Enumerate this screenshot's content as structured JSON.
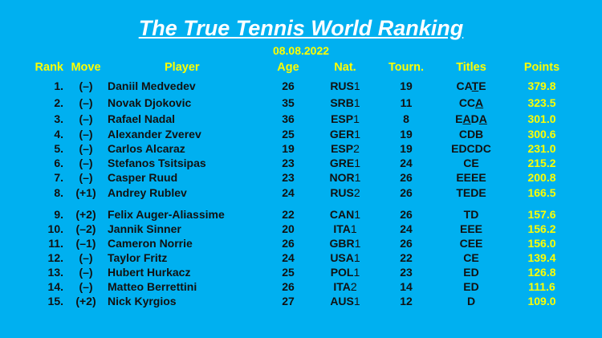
{
  "title": "The True Tennis World Ranking",
  "date": "08.08.2022",
  "headers": {
    "rank": "Rank",
    "move": "Move",
    "player": "Player",
    "age": "Age",
    "nat": "Nat.",
    "tourn": "Tourn.",
    "titles": "Titles",
    "points": "Points"
  },
  "rows": [
    {
      "rank": "1.",
      "move": "(–)",
      "player": "Daniil Medvedev",
      "age": "26",
      "nat": "RUS",
      "nat_n": "1",
      "tourn": "19",
      "titles": [
        {
          "t": "CA",
          "u": false
        },
        {
          "t": "T",
          "u": true
        },
        {
          "t": "E",
          "u": false
        }
      ],
      "points": "379.8"
    },
    {
      "rank": "2.",
      "move": "(–)",
      "player": "Novak Djokovic",
      "age": "35",
      "nat": "SRB",
      "nat_n": "1",
      "tourn": "11",
      "titles": [
        {
          "t": "CC",
          "u": false
        },
        {
          "t": "A",
          "u": true
        }
      ],
      "points": "323.5"
    },
    {
      "rank": "3.",
      "move": "(–)",
      "player": "Rafael Nadal",
      "age": "36",
      "nat": "ESP",
      "nat_n": "1",
      "tourn": "8",
      "titles": [
        {
          "t": "E",
          "u": false
        },
        {
          "t": "A",
          "u": true
        },
        {
          "t": "D",
          "u": false
        },
        {
          "t": "A",
          "u": true
        }
      ],
      "points": "301.0"
    },
    {
      "rank": "4.",
      "move": "(–)",
      "player": "Alexander Zverev",
      "age": "25",
      "nat": "GER",
      "nat_n": "1",
      "tourn": "19",
      "titles": [
        {
          "t": "CDB",
          "u": false
        }
      ],
      "points": "300.6"
    },
    {
      "rank": "5.",
      "move": "(–)",
      "player": "Carlos Alcaraz",
      "age": "19",
      "nat": "ESP",
      "nat_n": "2",
      "tourn": "19",
      "titles": [
        {
          "t": "EDCDC",
          "u": false
        }
      ],
      "points": "231.0"
    },
    {
      "rank": "6.",
      "move": "(–)",
      "player": "Stefanos Tsitsipas",
      "age": "23",
      "nat": "GRE",
      "nat_n": "1",
      "tourn": "24",
      "titles": [
        {
          "t": "CE",
          "u": false
        }
      ],
      "points": "215.2"
    },
    {
      "rank": "7.",
      "move": "(–)",
      "player": "Casper Ruud",
      "age": "23",
      "nat": "NOR",
      "nat_n": "1",
      "tourn": "26",
      "titles": [
        {
          "t": "EEEE",
          "u": false
        }
      ],
      "points": "200.8"
    },
    {
      "rank": "8.",
      "move": "(+1)",
      "player": "Andrey Rublev",
      "age": "24",
      "nat": "RUS",
      "nat_n": "2",
      "tourn": "26",
      "titles": [
        {
          "t": "TEDE",
          "u": false
        }
      ],
      "points": "166.5"
    },
    {
      "rank": "9.",
      "move": "(+2)",
      "player": "Felix Auger-Aliassime",
      "age": "22",
      "nat": "CAN",
      "nat_n": "1",
      "tourn": "26",
      "titles": [
        {
          "t": "TD",
          "u": false
        }
      ],
      "points": "157.6"
    },
    {
      "rank": "10.",
      "move": "(–2)",
      "player": "Jannik Sinner",
      "age": "20",
      "nat": "ITA",
      "nat_n": "1",
      "tourn": "24",
      "titles": [
        {
          "t": "EEE",
          "u": false
        }
      ],
      "points": "156.2"
    },
    {
      "rank": "11.",
      "move": "(–1)",
      "player": "Cameron Norrie",
      "age": "26",
      "nat": "GBR",
      "nat_n": "1",
      "tourn": "26",
      "titles": [
        {
          "t": "CEE",
          "u": false
        }
      ],
      "points": "156.0"
    },
    {
      "rank": "12.",
      "move": "(–)",
      "player": "Taylor Fritz",
      "age": "24",
      "nat": "USA",
      "nat_n": "1",
      "tourn": "22",
      "titles": [
        {
          "t": "CE",
          "u": false
        }
      ],
      "points": "139.4"
    },
    {
      "rank": "13.",
      "move": "(–)",
      "player": "Hubert Hurkacz",
      "age": "25",
      "nat": "POL",
      "nat_n": "1",
      "tourn": "23",
      "titles": [
        {
          "t": "ED",
          "u": false
        }
      ],
      "points": "126.8"
    },
    {
      "rank": "14.",
      "move": "(–)",
      "player": "Matteo Berrettini",
      "age": "26",
      "nat": "ITA",
      "nat_n": "2",
      "tourn": "14",
      "titles": [
        {
          "t": "ED",
          "u": false
        }
      ],
      "points": "111.6"
    },
    {
      "rank": "15.",
      "move": "(+2)",
      "player": "Nick Kyrgios",
      "age": "27",
      "nat": "AUS",
      "nat_n": "1",
      "tourn": "12",
      "titles": [
        {
          "t": "D",
          "u": false
        }
      ],
      "points": "109.0"
    }
  ],
  "colors": {
    "background": "#00B0F0",
    "title": "#FFFFFF",
    "accent": "#FFFF00",
    "text": "#111111"
  }
}
